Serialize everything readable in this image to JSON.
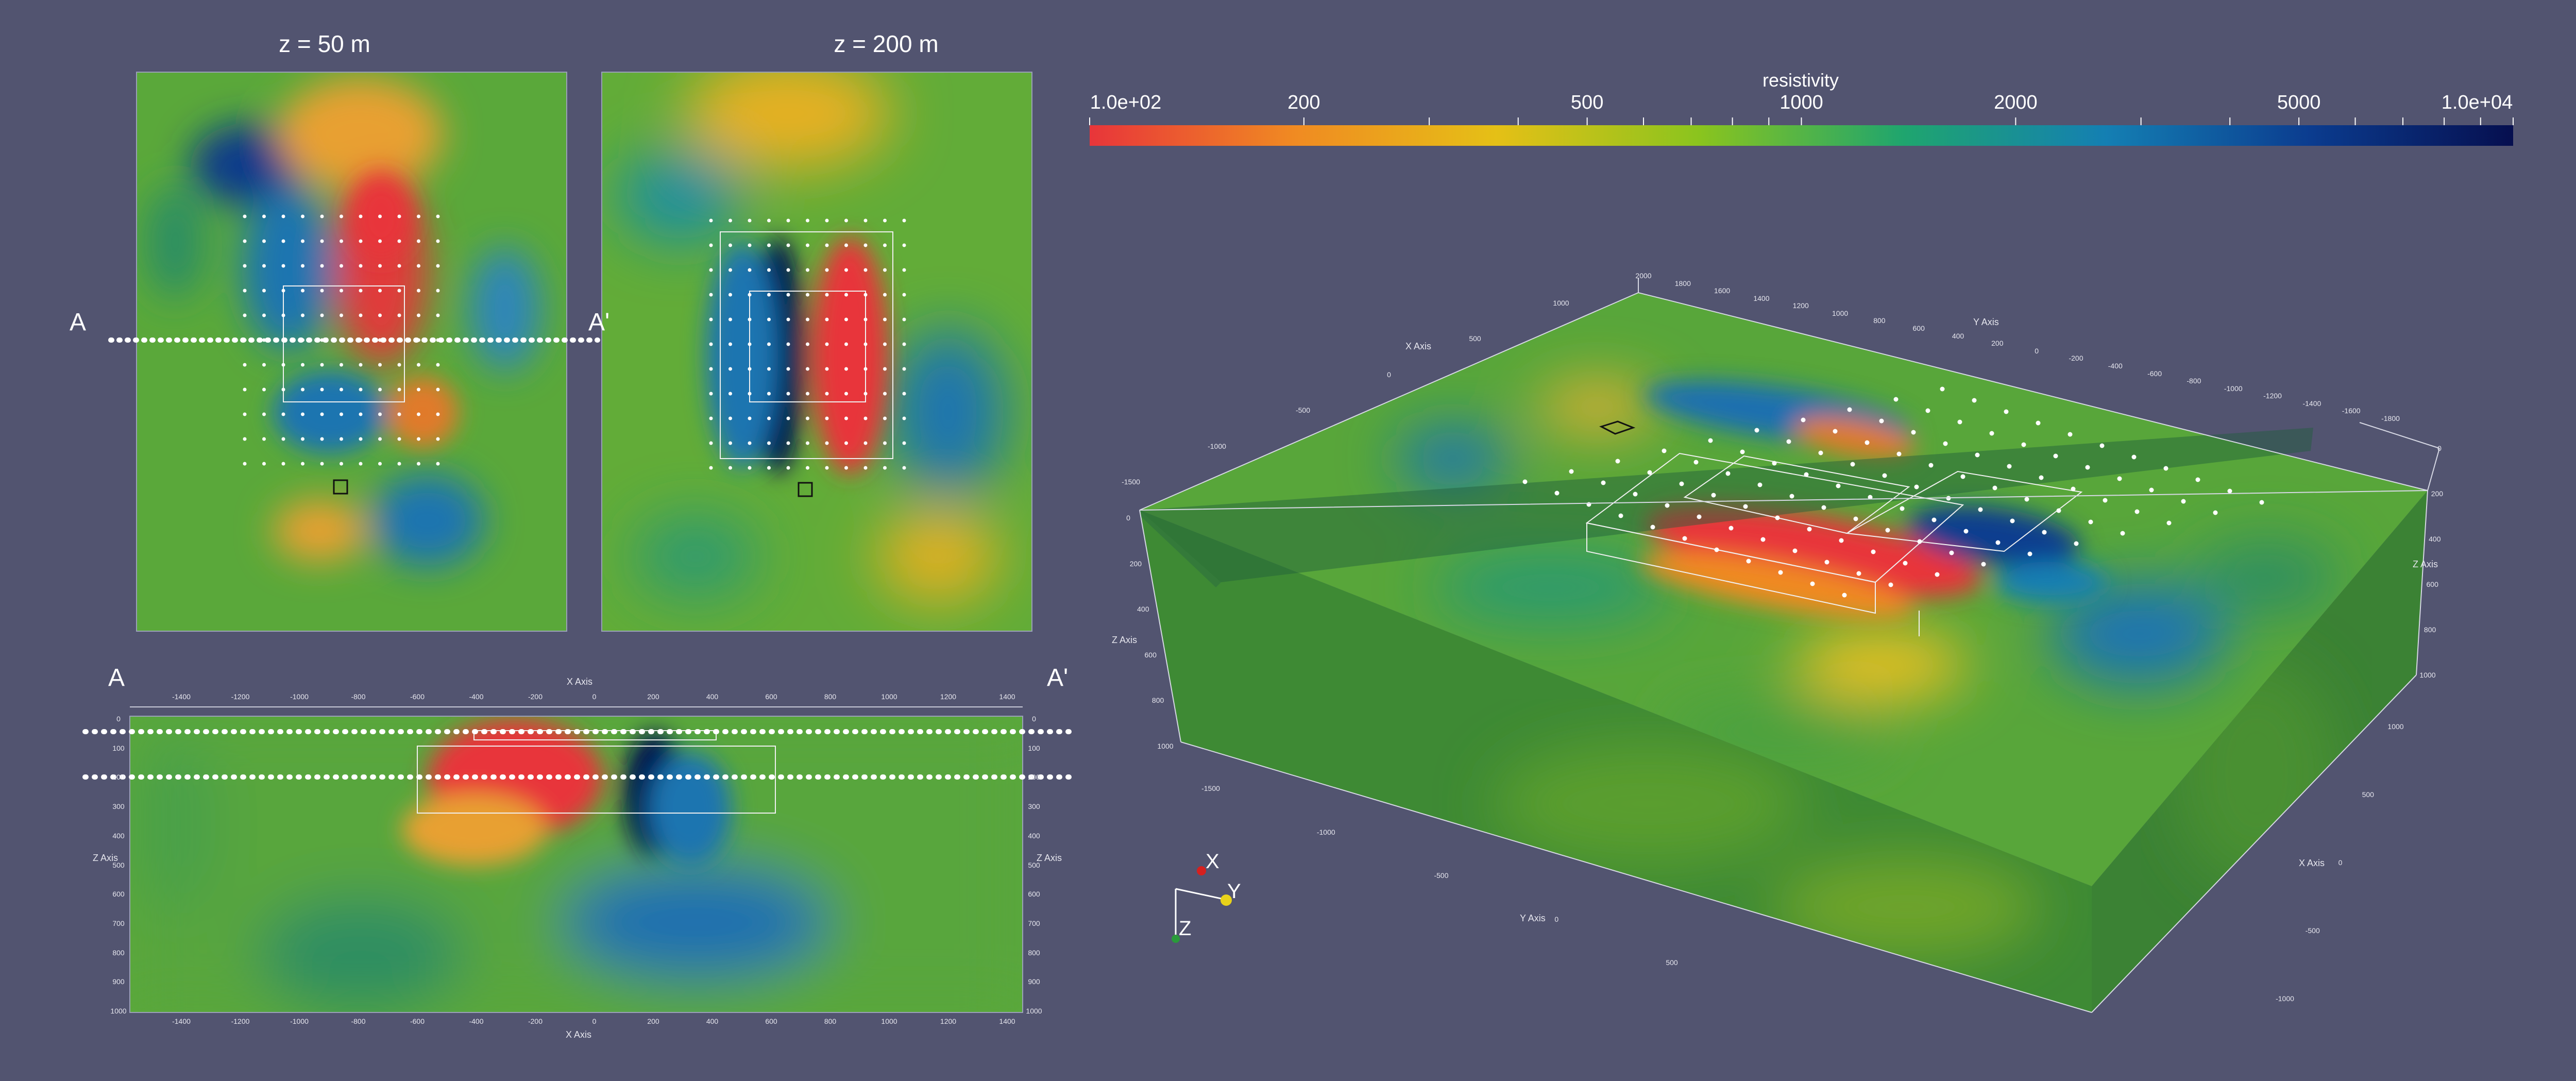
{
  "colorbar": {
    "title": "resistivity",
    "labels": [
      "1.0e+02",
      "200",
      "500",
      "1000",
      "2000",
      "5000",
      "1.0e+04"
    ],
    "label_values": [
      100,
      200,
      500,
      1000,
      2000,
      5000,
      10000
    ],
    "range": [
      100,
      10000
    ],
    "scale": "log",
    "colors": [
      "#e8353a",
      "#f08a22",
      "#e5c016",
      "#8ac41e",
      "#1fa56e",
      "#147fb3",
      "#0b3c8f",
      "#060f4f"
    ]
  },
  "panel_top_left": {
    "title": "z = 50 m"
  },
  "panel_top_right": {
    "title": "z = 200 m"
  },
  "section_markers": {
    "start": "A",
    "end": "A'"
  },
  "section_panel": {
    "top_ticks": [
      "-1400",
      "-1200",
      "-1000",
      "-800",
      "-600",
      "-400",
      "-200",
      "0",
      "200",
      "400",
      "600",
      "800",
      "1000",
      "1200",
      "1400"
    ],
    "bottom_ticks": [
      "-1400",
      "-1200",
      "-1000",
      "-800",
      "-600",
      "-400",
      "-200",
      "0",
      "200",
      "400",
      "600",
      "800",
      "1000",
      "1200",
      "1400"
    ],
    "depth_ticks": [
      "0",
      "100",
      "200",
      "300",
      "400",
      "500",
      "600",
      "700",
      "800",
      "900",
      "1000"
    ],
    "x_axis_title": "X Axis",
    "z_axis_title": "Z Axis"
  },
  "block3d": {
    "x_axis_title": "X Axis",
    "y_axis_title": "Y Axis",
    "z_axis_title": "Z Axis",
    "x_ticks_top": [
      "1000",
      "500",
      "0",
      "-500",
      "-1000",
      "-1500"
    ],
    "y_ticks_top": [
      "2000",
      "1800",
      "1600",
      "1400",
      "1200",
      "1000",
      "800",
      "600",
      "400",
      "200",
      "0",
      "-200",
      "-400",
      "-600",
      "-800",
      "-1000",
      "-1200",
      "-1400",
      "-1600",
      "-1800"
    ],
    "y_ticks_bottom": [
      "-1500",
      "-1000",
      "-500",
      "0",
      "500"
    ],
    "x_ticks_right": [
      "1000",
      "500",
      "0",
      "-500",
      "-1000"
    ],
    "z_ticks_left": [
      "0",
      "200",
      "400",
      "600",
      "800",
      "1000"
    ],
    "z_ticks_right": [
      "0",
      "200",
      "400",
      "600",
      "800",
      "1000"
    ]
  },
  "orientation": {
    "x": "X",
    "y": "Y",
    "z": "Z"
  },
  "axis_colors": {
    "x": "#d6201e",
    "y": "#e8d21a",
    "z": "#2a9a3a"
  }
}
